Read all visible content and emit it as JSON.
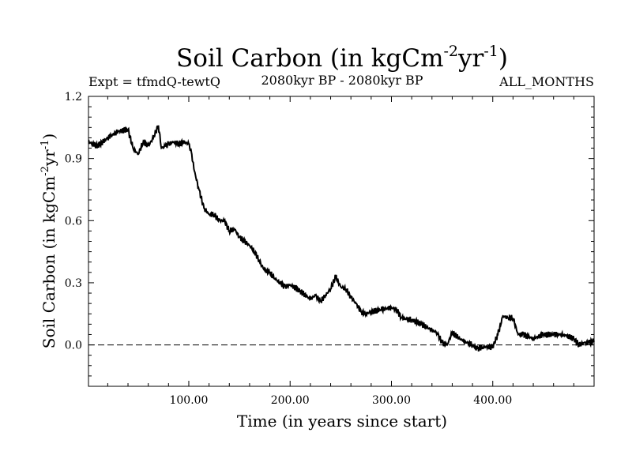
{
  "chart_data": {
    "type": "line",
    "title": "Soil Carbon (in kgCm",
    "title_units": {
      "exp1": "-2",
      "mid": "yr",
      "exp2": "-1",
      "close": ")"
    },
    "experiment": "Expt = tfmdQ-tewtQ",
    "period": "2080kyr BP - 2080kyr BP",
    "season": "ALL_MONTHS",
    "xlabel": "Time (in years since start)",
    "ylabel": "Soil Carbon (in kgCm",
    "ylabel_units": {
      "exp1": "-2",
      "mid": "yr",
      "exp2": "-1",
      "close": ")"
    },
    "xlim": [
      1,
      500
    ],
    "ylim": [
      -0.2,
      1.2
    ],
    "x_ticks": [
      100,
      200,
      300,
      400
    ],
    "x_tick_labels": [
      "100.00",
      "200.00",
      "300.00",
      "400.00"
    ],
    "y_ticks": [
      0.0,
      0.3,
      0.6,
      0.9,
      1.2
    ],
    "y_tick_labels": [
      "0.0",
      "0.3",
      "0.6",
      "0.9",
      "1.2"
    ],
    "reference_line": 0.0,
    "series": [
      {
        "name": "Soil Carbon",
        "color": "#000000",
        "x": [
          1,
          10,
          20,
          30,
          40,
          45,
          50,
          55,
          60,
          65,
          70,
          73,
          77,
          80,
          85,
          90,
          95,
          100,
          103,
          105,
          110,
          115,
          120,
          125,
          130,
          135,
          140,
          145,
          150,
          155,
          160,
          165,
          170,
          175,
          180,
          185,
          190,
          195,
          200,
          210,
          220,
          225,
          230,
          235,
          240,
          245,
          250,
          255,
          260,
          265,
          270,
          275,
          280,
          290,
          300,
          305,
          310,
          320,
          330,
          340,
          345,
          350,
          355,
          360,
          370,
          380,
          385,
          390,
          400,
          405,
          410,
          415,
          420,
          425,
          430,
          440,
          450,
          460,
          470,
          480,
          485,
          490,
          495,
          500
        ],
        "y": [
          0.98,
          0.96,
          1.0,
          1.03,
          1.04,
          0.95,
          0.92,
          0.98,
          0.96,
          1.0,
          1.06,
          0.95,
          0.96,
          0.97,
          0.98,
          0.97,
          0.98,
          0.97,
          0.92,
          0.85,
          0.75,
          0.66,
          0.63,
          0.63,
          0.6,
          0.6,
          0.55,
          0.56,
          0.52,
          0.5,
          0.48,
          0.45,
          0.4,
          0.36,
          0.35,
          0.32,
          0.3,
          0.28,
          0.29,
          0.26,
          0.22,
          0.24,
          0.21,
          0.24,
          0.27,
          0.33,
          0.28,
          0.27,
          0.23,
          0.2,
          0.16,
          0.15,
          0.16,
          0.17,
          0.18,
          0.17,
          0.13,
          0.12,
          0.1,
          0.07,
          0.06,
          0.01,
          0.0,
          0.06,
          0.02,
          0.0,
          -0.02,
          -0.01,
          -0.01,
          0.05,
          0.14,
          0.13,
          0.13,
          0.05,
          0.05,
          0.03,
          0.05,
          0.05,
          0.05,
          0.03,
          0.0,
          0.01,
          0.01,
          0.02
        ]
      }
    ]
  }
}
